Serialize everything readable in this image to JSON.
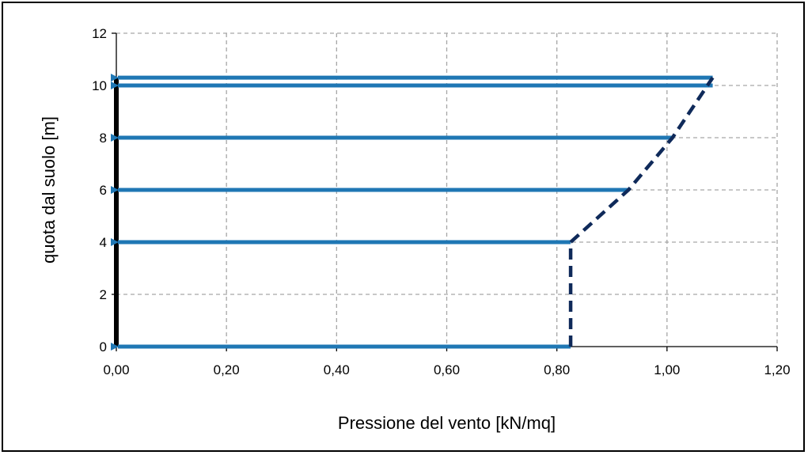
{
  "chart_data": {
    "type": "line",
    "title": "",
    "xlabel": "Pressione del vento [kN/mq]",
    "ylabel": "quota dal suolo  [m]",
    "xlim": [
      0,
      1.2
    ],
    "ylim": [
      0,
      12
    ],
    "x_ticks": [
      "0,00",
      "0,20",
      "0,40",
      "0,60",
      "0,80",
      "1,00",
      "1,20"
    ],
    "y_ticks": [
      "0",
      "2",
      "4",
      "6",
      "8",
      "10",
      "12"
    ],
    "grid": true,
    "legend": "none",
    "series": [
      {
        "style": "dashed",
        "color": "#0f2a5a",
        "points": [
          [
            0.825,
            0
          ],
          [
            0.825,
            4
          ],
          [
            0.93,
            6
          ],
          [
            1.01,
            8
          ],
          [
            1.083,
            10.3
          ]
        ]
      }
    ],
    "arrows": {
      "color": "#1f77b4",
      "direction": "toward x = 0",
      "items": [
        {
          "y": 0,
          "from_x": 0.825
        },
        {
          "y": 4,
          "from_x": 0.825
        },
        {
          "y": 6,
          "from_x": 0.93
        },
        {
          "y": 8,
          "from_x": 1.01
        },
        {
          "y": 10.0,
          "from_x": 1.083
        },
        {
          "y": 10.3,
          "from_x": 1.083
        }
      ]
    },
    "structure_line": {
      "x": 0,
      "y_from": 0,
      "y_to": 10.3,
      "color": "#000000"
    }
  }
}
